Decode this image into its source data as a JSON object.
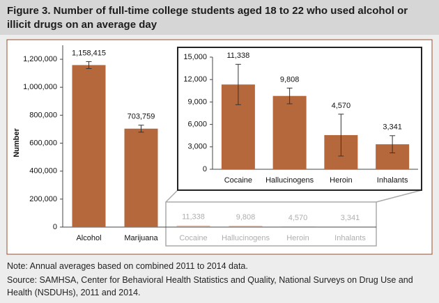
{
  "title": "Figure 3. Number of full-time college students aged 18 to 22 who used alcohol or illicit drugs on an average day",
  "note": "Note: Annual averages based on combined 2011 to 2014 data.",
  "source": "Source: SAMHSA, Center for Behavioral Health Statistics and Quality, National Surveys on Drug Use and Health (NSDUHs), 2011 and 2014.",
  "chart_data": [
    {
      "type": "bar",
      "ylabel": "Number",
      "categories": [
        "Alcohol",
        "Marijuana",
        "Cocaine",
        "Hallucinogens",
        "Heroin",
        "Inhalants"
      ],
      "values": [
        1158415,
        703759,
        11338,
        9808,
        4570,
        3341
      ],
      "value_labels": [
        "1,158,415",
        "703,759",
        "11,338",
        "9,808",
        "4,570",
        "3,341"
      ],
      "errors": [
        25000,
        25000,
        null,
        null,
        null,
        null
      ],
      "color": "#b5683c",
      "ylim": [
        0,
        1300000
      ],
      "yticks": [
        0,
        {
          "value": 200000,
          "label": "200,000"
        },
        {
          "value": 400000,
          "label": "400,000"
        },
        {
          "value": 600000,
          "label": "600,000"
        },
        {
          "value": 800000,
          "label": "800,000"
        },
        {
          "value": 1000000,
          "label": "1,000,000"
        },
        {
          "value": 1200000,
          "label": "1,200,000"
        }
      ]
    },
    {
      "type": "bar",
      "categories": [
        "Cocaine",
        "Hallucinogens",
        "Heroin",
        "Inhalants"
      ],
      "values": [
        11338,
        9808,
        4570,
        3341
      ],
      "value_labels": [
        "11,338",
        "9,808",
        "4,570",
        "3,341"
      ],
      "errors": [
        2700,
        1050,
        2800,
        1150
      ],
      "color": "#b5683c",
      "ylim": [
        0,
        15000
      ],
      "yticks": [
        0,
        {
          "value": 3000,
          "label": "3,000"
        },
        {
          "value": 6000,
          "label": "6,000"
        },
        {
          "value": 9000,
          "label": "9,000"
        },
        {
          "value": 12000,
          "label": "12,000"
        },
        {
          "value": 15000,
          "label": "15,000"
        }
      ]
    }
  ]
}
